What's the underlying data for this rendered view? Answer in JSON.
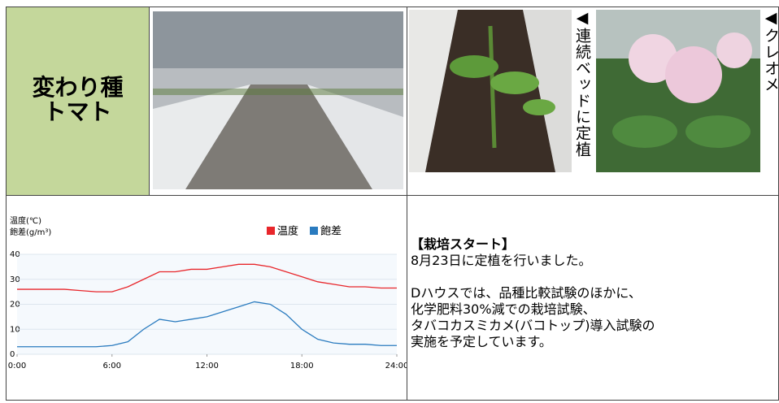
{
  "title_cell": {
    "lines": [
      "変わり種",
      "トマト"
    ]
  },
  "photo_captions": [
    "◀連続ベッドに定植",
    "◀クレオメ"
  ],
  "report": {
    "heading": "【栽培スタート】",
    "intro": "8月23日に定植を行いました。",
    "lines": [
      "Dハウスでは、品種比較試験のほかに、",
      "化学肥料30%減での栽培試験、",
      "タバコカスミカメ(バコトップ)導入試験の",
      "実施を予定しています。"
    ]
  },
  "chart_data": {
    "type": "line",
    "ylabel": [
      "温度(℃)",
      "飽差(g/m³)"
    ],
    "x": [
      0,
      1,
      2,
      3,
      4,
      5,
      6,
      7,
      8,
      9,
      10,
      11,
      12,
      13,
      14,
      15,
      16,
      17,
      18,
      19,
      20,
      21,
      22,
      23,
      24
    ],
    "xlim": [
      0,
      24
    ],
    "xticks": [
      {
        "value": 0,
        "label": "0:00"
      },
      {
        "value": 6,
        "label": "6:00"
      },
      {
        "value": 12,
        "label": "12:00"
      },
      {
        "value": 18,
        "label": "18:00"
      },
      {
        "value": 24,
        "label": "24:00"
      }
    ],
    "ylim": [
      0,
      40
    ],
    "yticks": [
      0,
      10,
      20,
      30,
      40
    ],
    "grid": true,
    "series": [
      {
        "name": "温度",
        "color": "#e8262b",
        "values": [
          26,
          26,
          26,
          26,
          25.5,
          25,
          25,
          27,
          30,
          33,
          33,
          34,
          34,
          35,
          36,
          36,
          35,
          33,
          31,
          29,
          28,
          27,
          27,
          26.5,
          26.5
        ]
      },
      {
        "name": "飽差",
        "color": "#2a7bbf",
        "values": [
          3,
          3,
          3,
          3,
          3,
          3,
          3.5,
          5,
          10,
          14,
          13,
          14,
          15,
          17,
          19,
          21,
          20,
          16,
          10,
          6,
          4.5,
          4,
          4,
          3.5,
          3.5
        ]
      }
    ]
  }
}
